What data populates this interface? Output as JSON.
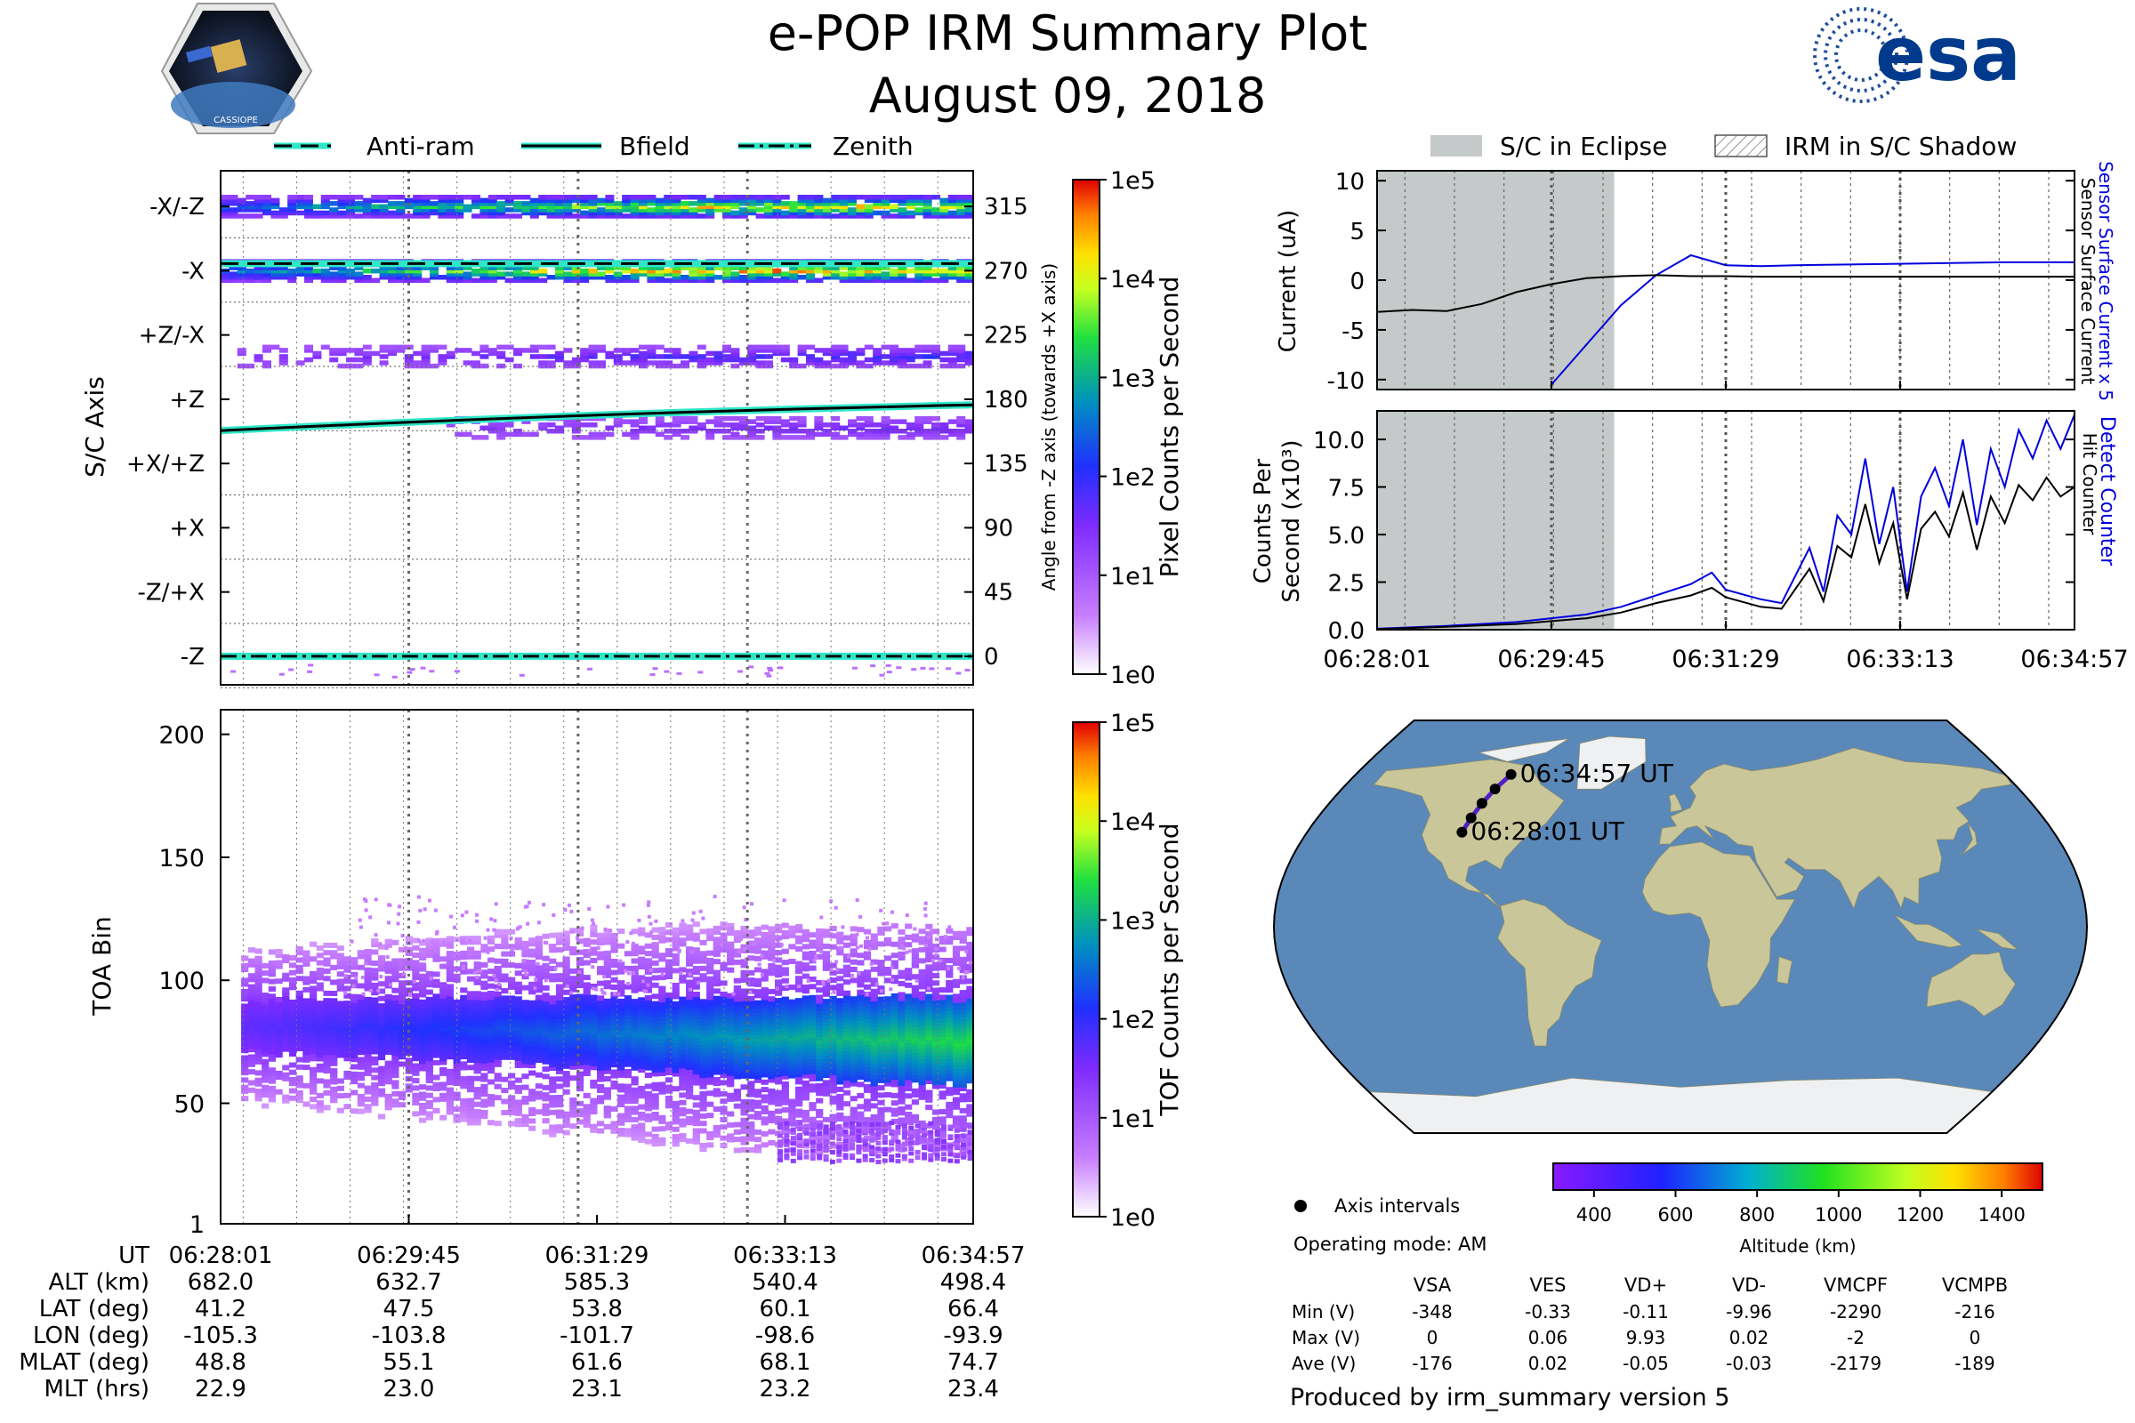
{
  "header": {
    "title": "e-POP IRM Summary Plot",
    "date": "August 09, 2018",
    "logo_left_label": "CASSIOPE",
    "logo_right_text": "esa"
  },
  "colors": {
    "line_cyan": "#2ee6c8",
    "current_blue": "#0000dd",
    "eclipse_gray": "#c6c9c9",
    "ocean": "#5a88b8",
    "land": "#c9c79a",
    "track": "#000000"
  },
  "legends": {
    "top_left": [
      "Anti-ram",
      "Bfield",
      "Zenith"
    ],
    "top_right": [
      "S/C in Eclipse",
      "IRM in S/C Shadow"
    ]
  },
  "chart_data": [
    {
      "id": "angle_spectrogram",
      "type": "heatmap",
      "title": "",
      "xlabel": "",
      "ylabel": "S/C Axis",
      "ylabel_right": "Angle from -Z axis (towards +X axis)",
      "ylim": [
        -20,
        340
      ],
      "left_ticks": [
        {
          "v": 315,
          "label": "-X/-Z"
        },
        {
          "v": 270,
          "label": "-X"
        },
        {
          "v": 225,
          "label": "+Z/-X"
        },
        {
          "v": 180,
          "label": "+Z"
        },
        {
          "v": 135,
          "label": "+X/+Z"
        },
        {
          "v": 90,
          "label": "+X"
        },
        {
          "v": 45,
          "label": "-Z/+X"
        },
        {
          "v": 0,
          "label": "-Z"
        }
      ],
      "right_ticks": [
        315,
        270,
        225,
        180,
        135,
        90,
        45,
        0
      ],
      "bands": [
        {
          "angle": 315,
          "start": 0.0,
          "rise": 0.65,
          "peak": 0.95,
          "note": "dense band"
        },
        {
          "angle": 270,
          "start": 0.0,
          "rise": 0.55,
          "peak": 1.0,
          "note": "brightest band"
        },
        {
          "angle": 210,
          "start": 0.02,
          "rise": 0.8,
          "peak": 0.3,
          "note": "faint"
        },
        {
          "angle": 160,
          "start": 0.3,
          "rise": 0.9,
          "peak": 0.2,
          "note": "faint"
        }
      ],
      "lines": {
        "anti_ram": {
          "angle": 275
        },
        "bfield": {
          "angle_start": 158,
          "angle_end": 176
        },
        "zenith": {
          "angle": 0
        }
      },
      "colorbar": {
        "label": "Pixel Counts per Second",
        "ticks": [
          "1e5",
          "1e4",
          "1e3",
          "1e2",
          "1e1",
          "1e0"
        ],
        "scale": "log"
      }
    },
    {
      "id": "toa_spectrogram",
      "type": "heatmap",
      "xlabel": "",
      "ylabel": "TOA Bin",
      "ylim": [
        1,
        210
      ],
      "yticks": [
        200,
        150,
        100,
        50,
        1
      ],
      "core": {
        "center_start": 82,
        "center_end": 75,
        "halfwidth_start": 10,
        "halfwidth_end": 18,
        "peak_start": 0.1,
        "peak_end": 0.55
      },
      "colorbar": {
        "label": "TOF Counts per Second",
        "ticks": [
          "1e5",
          "1e4",
          "1e3",
          "1e2",
          "1e1",
          "1e0"
        ],
        "scale": "log"
      }
    },
    {
      "id": "current",
      "type": "line",
      "ylabel": "Current (uA)",
      "ylabel_right": [
        "Sensor Surface Current x 5",
        "Sensor Surface Current"
      ],
      "ylim": [
        -11,
        11
      ],
      "yticks": [
        10,
        5,
        0,
        -5,
        -10
      ],
      "x": [
        0,
        0.05,
        0.1,
        0.15,
        0.2,
        0.25,
        0.3,
        0.35,
        0.4,
        0.45,
        0.5,
        0.55,
        0.6,
        0.7,
        0.8,
        0.9,
        1.0
      ],
      "series": [
        {
          "name": "Sensor Surface Current x 5",
          "color": "#0000dd",
          "values": [
            null,
            null,
            null,
            null,
            null,
            -10.5,
            -6.5,
            -2.5,
            0.5,
            2.5,
            1.5,
            1.4,
            1.5,
            1.6,
            1.7,
            1.8,
            1.8
          ]
        },
        {
          "name": "Sensor Surface Current",
          "color": "#000000",
          "values": [
            -3.2,
            -3.0,
            -3.1,
            -2.4,
            -1.2,
            -0.4,
            0.2,
            0.4,
            0.5,
            0.4,
            0.4,
            0.35,
            0.35,
            0.35,
            0.35,
            0.35,
            0.35
          ]
        }
      ],
      "eclipse_end_frac": 0.34
    },
    {
      "id": "counts",
      "type": "line",
      "ylabel": [
        "Counts Per",
        "Second (x10³)"
      ],
      "ylabel_right": [
        "Detect Counter",
        "Hit Counter"
      ],
      "ylim": [
        0,
        11.5
      ],
      "yticks": [
        0.0,
        2.5,
        5.0,
        7.5,
        10.0
      ],
      "x": [
        0,
        0.1,
        0.2,
        0.3,
        0.35,
        0.4,
        0.45,
        0.48,
        0.5,
        0.55,
        0.58,
        0.62,
        0.64,
        0.66,
        0.68,
        0.7,
        0.72,
        0.74,
        0.76,
        0.78,
        0.8,
        0.82,
        0.84,
        0.86,
        0.88,
        0.9,
        0.92,
        0.94,
        0.96,
        0.98,
        1.0
      ],
      "series": [
        {
          "name": "Detect Counter",
          "color": "#0000dd",
          "values": [
            0.05,
            0.2,
            0.4,
            0.8,
            1.2,
            1.8,
            2.4,
            3.0,
            2.1,
            1.6,
            1.4,
            4.3,
            2.0,
            6.0,
            5.0,
            9.0,
            4.5,
            7.5,
            2.0,
            7.0,
            8.5,
            6.5,
            10.0,
            5.5,
            9.5,
            7.5,
            10.5,
            9.0,
            11.0,
            9.5,
            11.3
          ]
        },
        {
          "name": "Hit Counter",
          "color": "#000000",
          "values": [
            0.03,
            0.15,
            0.3,
            0.6,
            0.9,
            1.4,
            1.8,
            2.2,
            1.7,
            1.2,
            1.1,
            3.2,
            1.5,
            4.4,
            3.8,
            6.6,
            3.5,
            5.6,
            1.6,
            5.3,
            6.2,
            4.9,
            7.2,
            4.2,
            7.0,
            5.6,
            7.6,
            6.8,
            8.0,
            7.0,
            7.5
          ]
        }
      ],
      "eclipse_end_frac": 0.34
    }
  ],
  "time_axis": {
    "ticks": [
      "06:28:01",
      "06:29:45",
      "06:31:29",
      "06:33:13",
      "06:34:57"
    ]
  },
  "ephemeris": {
    "labels": [
      "UT",
      "ALT (km)",
      "LAT (deg)",
      "LON (deg)",
      "MLAT (deg)",
      "MLT (hrs)"
    ],
    "columns": [
      [
        "06:28:01",
        "682.0",
        "41.2",
        "-105.3",
        "48.8",
        "22.9"
      ],
      [
        "06:29:45",
        "632.7",
        "47.5",
        "-103.8",
        "55.1",
        "23.0"
      ],
      [
        "06:31:29",
        "585.3",
        "53.8",
        "-101.7",
        "61.6",
        "23.1"
      ],
      [
        "06:33:13",
        "540.4",
        "60.1",
        "-98.6",
        "68.1",
        "23.2"
      ],
      [
        "06:34:57",
        "498.4",
        "66.4",
        "-93.9",
        "74.7",
        "23.4"
      ]
    ]
  },
  "map": {
    "start_label": "06:28:01 UT",
    "end_label": "06:34:57 UT",
    "track": [
      {
        "lon": -105.3,
        "lat": 41.2
      },
      {
        "lon": -103.8,
        "lat": 47.5
      },
      {
        "lon": -101.7,
        "lat": 53.8
      },
      {
        "lon": -98.6,
        "lat": 60.1
      },
      {
        "lon": -93.9,
        "lat": 66.4
      }
    ],
    "altitude_colorbar": {
      "label": "Altitude (km)",
      "ticks": [
        "400",
        "600",
        "800",
        "1000",
        "1200",
        "1400"
      ],
      "range": [
        300,
        1500
      ]
    },
    "axis_intervals_label": "Axis intervals"
  },
  "voltages": {
    "operating_mode": "Operating mode: AM",
    "headers": [
      "VSA",
      "VES",
      "VD+",
      "VD-",
      "VMCPF",
      "VCMPB"
    ],
    "rows": [
      {
        "label": "Min (V)",
        "values": [
          "-348",
          "-0.33",
          "-0.11",
          "-9.96",
          "-2290",
          "-216"
        ]
      },
      {
        "label": "Max (V)",
        "values": [
          "0",
          "0.06",
          "9.93",
          "0.02",
          "-2",
          "0"
        ]
      },
      {
        "label": "Ave (V)",
        "values": [
          "-176",
          "0.02",
          "-0.05",
          "-0.03",
          "-2179",
          "-189"
        ]
      }
    ]
  },
  "footer": "Produced by irm_summary version 5"
}
